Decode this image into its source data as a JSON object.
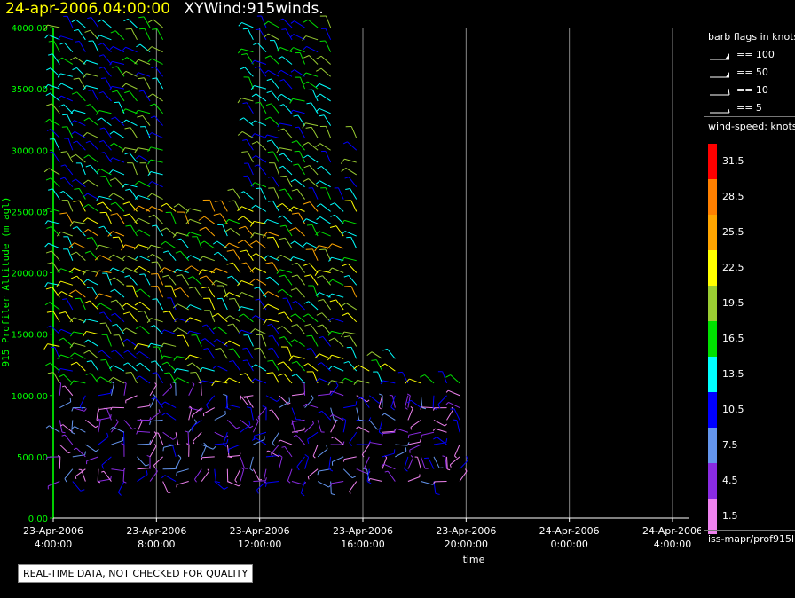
{
  "header": {
    "date_time": "24-apr-2006,04:00:00",
    "plot_name": "XYWind:915winds."
  },
  "footer": {
    "qc_note": "REAL-TIME DATA, NOT CHECKED FOR QUALITY",
    "source": "iss-mapr/prof915l"
  },
  "legend": {
    "barb_title": "barb flags in knots",
    "barb_flags": [
      {
        "label": "== 100",
        "value": 100
      },
      {
        "label": "== 50",
        "value": 50
      },
      {
        "label": "== 10",
        "value": 10
      },
      {
        "label": "== 5",
        "value": 5
      }
    ],
    "speed_title": "wind-speed: knots",
    "speed_scale": [
      {
        "label": "31.5",
        "color": "#ff0000"
      },
      {
        "label": "28.5",
        "color": "#ff8000"
      },
      {
        "label": "25.5",
        "color": "#ffa500"
      },
      {
        "label": "22.5",
        "color": "#ffff00"
      },
      {
        "label": "19.5",
        "color": "#9acd32"
      },
      {
        "label": "16.5",
        "color": "#00e000"
      },
      {
        "label": "13.5",
        "color": "#00ffff"
      },
      {
        "label": "10.5",
        "color": "#0000ff"
      },
      {
        "label": "7.5",
        "color": "#6495ed"
      },
      {
        "label": "4.5",
        "color": "#8a2be2"
      },
      {
        "label": "1.5",
        "color": "#ee82ee"
      }
    ]
  },
  "chart_data": {
    "type": "scatter",
    "mark": "wind-barb",
    "title": "XYWind:915winds.",
    "xlabel": "time",
    "ylabel": "915 Profiler Altitude (m agl)",
    "xlim": [
      "23-Apr-2006 4:00:00",
      "24-Apr-2006 4:00:00"
    ],
    "ylim": [
      0,
      4000
    ],
    "yticks": [
      "0.00",
      "500.00",
      "1000.00",
      "1500.00",
      "2000.00",
      "2500.00",
      "3000.00",
      "3500.00",
      "4000.00"
    ],
    "xticks": [
      {
        "date": "23-Apr-2006",
        "time": "4:00:00"
      },
      {
        "date": "23-Apr-2006",
        "time": "8:00:00"
      },
      {
        "date": "23-Apr-2006",
        "time": "12:00:00"
      },
      {
        "date": "23-Apr-2006",
        "time": "16:00:00"
      },
      {
        "date": "23-Apr-2006",
        "time": "20:00:00"
      },
      {
        "date": "24-Apr-2006",
        "time": "0:00:00"
      },
      {
        "date": "24-Apr-2006",
        "time": "4:00:00"
      }
    ],
    "grid": "vertical",
    "barb_columns": [
      {
        "time": "23-Apr-2006 4:15",
        "top": 4000
      },
      {
        "time": "23-Apr-2006 4:45",
        "top": 4000
      },
      {
        "time": "23-Apr-2006 5:15",
        "top": 4000
      },
      {
        "time": "23-Apr-2006 5:45",
        "top": 4000
      },
      {
        "time": "23-Apr-2006 6:15",
        "top": 4000
      },
      {
        "time": "23-Apr-2006 6:45",
        "top": 3900
      },
      {
        "time": "23-Apr-2006 7:15",
        "top": 4000
      },
      {
        "time": "23-Apr-2006 7:45",
        "top": 4000
      },
      {
        "time": "23-Apr-2006 8:15",
        "top": 4000
      },
      {
        "time": "23-Apr-2006 8:45",
        "top": 2550
      },
      {
        "time": "23-Apr-2006 9:15",
        "top": 2500
      },
      {
        "time": "23-Apr-2006 9:45",
        "top": 2500
      },
      {
        "time": "23-Apr-2006 10:15",
        "top": 2550
      },
      {
        "time": "23-Apr-2006 10:45",
        "top": 2550
      },
      {
        "time": "23-Apr-2006 11:15",
        "top": 2600
      },
      {
        "time": "23-Apr-2006 11:45",
        "top": 4000
      },
      {
        "time": "23-Apr-2006 12:15",
        "top": 4000
      },
      {
        "time": "23-Apr-2006 12:45",
        "top": 4000
      },
      {
        "time": "23-Apr-2006 13:15",
        "top": 4000
      },
      {
        "time": "23-Apr-2006 13:45",
        "top": 4000
      },
      {
        "time": "23-Apr-2006 14:15",
        "top": 4000
      },
      {
        "time": "23-Apr-2006 14:45",
        "top": 4000
      },
      {
        "time": "23-Apr-2006 15:15",
        "top": 2600
      },
      {
        "time": "23-Apr-2006 15:45",
        "top": 3100
      },
      {
        "time": "23-Apr-2006 16:15",
        "top": 1200
      },
      {
        "time": "23-Apr-2006 16:45",
        "top": 1300
      },
      {
        "time": "23-Apr-2006 17:15",
        "top": 1350
      },
      {
        "time": "23-Apr-2006 17:45",
        "top": 1150
      },
      {
        "time": "23-Apr-2006 18:15",
        "top": 1150
      },
      {
        "time": "23-Apr-2006 18:45",
        "top": 1150
      },
      {
        "time": "23-Apr-2006 19:15",
        "top": 1150
      },
      {
        "time": "23-Apr-2006 19:45",
        "top": 1150
      }
    ]
  }
}
